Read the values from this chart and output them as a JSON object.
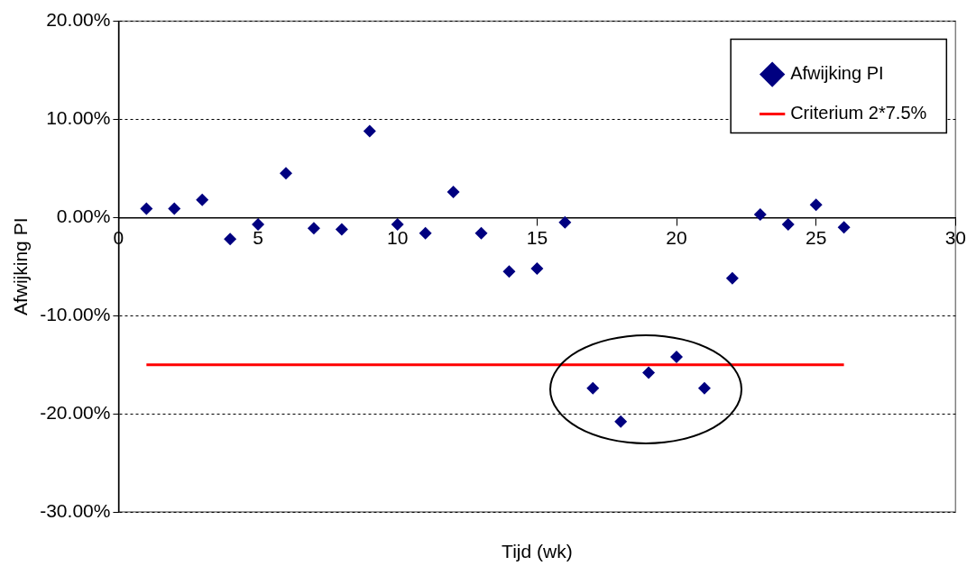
{
  "chart_data": {
    "type": "scatter",
    "xlabel": "Tijd (wk)",
    "ylabel": "Afwijking PI",
    "xlim": [
      0,
      30
    ],
    "xticks": [
      0,
      5,
      10,
      15,
      20,
      25,
      30
    ],
    "ylim": [
      -30,
      20
    ],
    "yticks": [
      {
        "value": -30,
        "label": "-30.00%"
      },
      {
        "value": -20,
        "label": "-20.00%"
      },
      {
        "value": -10,
        "label": "-10.00%"
      },
      {
        "value": 0,
        "label": "0.00%"
      },
      {
        "value": 10,
        "label": "10.00%"
      },
      {
        "value": 20,
        "label": "20.00%"
      }
    ],
    "grid": "y",
    "legend": "top right",
    "marker": "diamond",
    "series": [
      {
        "name": "Afwijking PI",
        "color": "#000080",
        "x": [
          1,
          2,
          3,
          4,
          5,
          6,
          7,
          8,
          9,
          10,
          11,
          12,
          13,
          14,
          15,
          16,
          17,
          18,
          19,
          20,
          21,
          22,
          23,
          24,
          25,
          26
        ],
        "values": [
          0.9,
          0.9,
          1.8,
          -2.2,
          -0.7,
          4.5,
          -1.1,
          -1.2,
          8.8,
          -0.7,
          -1.6,
          2.6,
          -1.6,
          -5.5,
          -5.2,
          -0.5,
          -17.4,
          -20.8,
          -15.8,
          -14.2,
          -17.4,
          -6.2,
          0.3,
          -0.7,
          1.3,
          -1.0
        ]
      },
      {
        "name": "Criterium 2*7.5%",
        "type": "line",
        "color": "#ff0000",
        "marker": "none",
        "x": [
          1,
          26
        ],
        "values": [
          -15,
          -15
        ]
      }
    ]
  }
}
